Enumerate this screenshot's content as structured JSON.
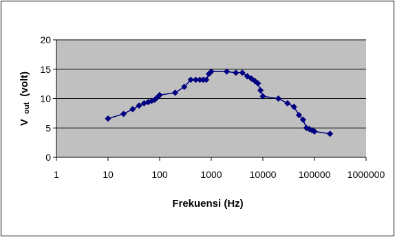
{
  "chart_data": {
    "type": "line",
    "xscale": "log",
    "xlim": [
      1,
      1000000
    ],
    "ylim": [
      0,
      20
    ],
    "grid": true,
    "xlabel": "Frekuensi (Hz)",
    "ylabel_main": "V",
    "ylabel_sub": "out",
    "ylabel_rest": "(volt)",
    "x_tick_labels": [
      "1",
      "10",
      "100",
      "1000",
      "10000",
      "100000",
      "1000000"
    ],
    "y_tick_labels": [
      "0",
      "5",
      "10",
      "15",
      "20"
    ],
    "series": [
      {
        "x": [
          10,
          20,
          30,
          40,
          50,
          60,
          70,
          80,
          90,
          100,
          200,
          300,
          400,
          500,
          600,
          700,
          800,
          900,
          1000,
          2000,
          3000,
          4000,
          5000,
          6000,
          7000,
          8000,
          9000,
          10000,
          20000,
          30000,
          40000,
          50000,
          60000,
          70000,
          80000,
          90000,
          100000,
          200000
        ],
        "y": [
          6.6,
          7.4,
          8.2,
          8.8,
          9.2,
          9.4,
          9.6,
          9.8,
          10.2,
          10.6,
          11.0,
          12.0,
          13.2,
          13.2,
          13.2,
          13.2,
          13.2,
          14.2,
          14.6,
          14.6,
          14.4,
          14.4,
          13.8,
          13.4,
          13.0,
          12.6,
          11.4,
          10.4,
          10.0,
          9.2,
          8.6,
          7.2,
          6.4,
          5.0,
          4.8,
          4.6,
          4.4,
          4.0
        ]
      }
    ],
    "colors": {
      "plot_bg": "#c0c0c0",
      "series": "#000080",
      "grid": "#000000"
    }
  }
}
